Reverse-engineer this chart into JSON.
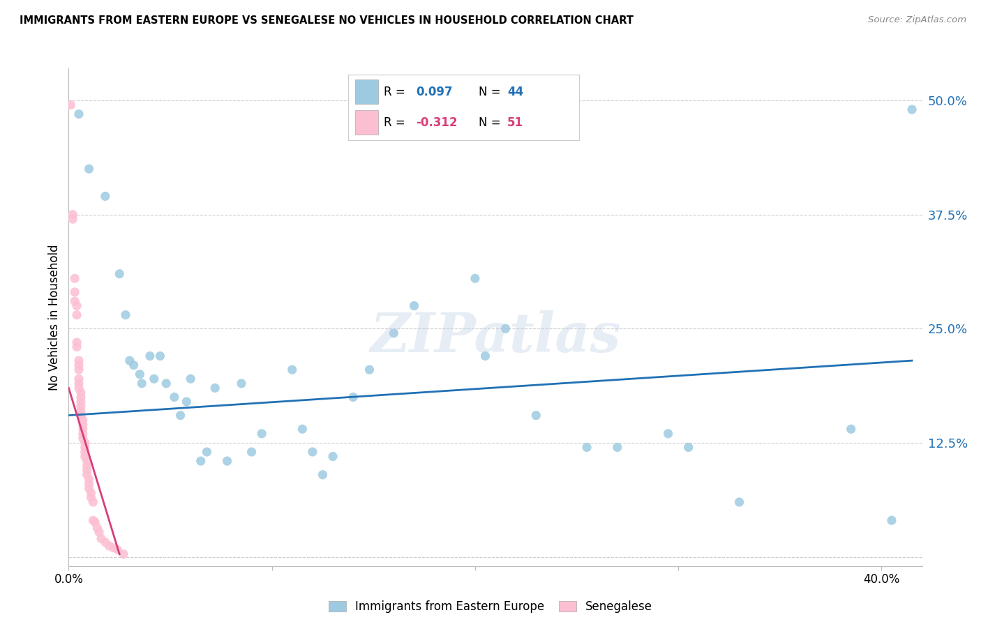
{
  "title": "IMMIGRANTS FROM EASTERN EUROPE VS SENEGALESE NO VEHICLES IN HOUSEHOLD CORRELATION CHART",
  "source": "Source: ZipAtlas.com",
  "ylabel": "No Vehicles in Household",
  "yticks": [
    0.0,
    0.125,
    0.25,
    0.375,
    0.5
  ],
  "ytick_labels": [
    "",
    "12.5%",
    "25.0%",
    "37.5%",
    "50.0%"
  ],
  "xticks": [
    0.0,
    0.1,
    0.2,
    0.3,
    0.4
  ],
  "xlim": [
    0.0,
    0.42
  ],
  "ylim": [
    -0.01,
    0.535
  ],
  "legend_label1": "Immigrants from Eastern Europe",
  "legend_label2": "Senegalese",
  "blue_color": "#9ecae1",
  "pink_color": "#fcbfd2",
  "blue_line_color": "#2171b5",
  "pink_line_color": "#d63e7a",
  "blue_scatter": [
    [
      0.005,
      0.485
    ],
    [
      0.01,
      0.425
    ],
    [
      0.018,
      0.395
    ],
    [
      0.025,
      0.31
    ],
    [
      0.028,
      0.265
    ],
    [
      0.03,
      0.215
    ],
    [
      0.032,
      0.21
    ],
    [
      0.035,
      0.2
    ],
    [
      0.036,
      0.19
    ],
    [
      0.04,
      0.22
    ],
    [
      0.042,
      0.195
    ],
    [
      0.045,
      0.22
    ],
    [
      0.048,
      0.19
    ],
    [
      0.052,
      0.175
    ],
    [
      0.055,
      0.155
    ],
    [
      0.058,
      0.17
    ],
    [
      0.06,
      0.195
    ],
    [
      0.065,
      0.105
    ],
    [
      0.068,
      0.115
    ],
    [
      0.072,
      0.185
    ],
    [
      0.078,
      0.105
    ],
    [
      0.085,
      0.19
    ],
    [
      0.09,
      0.115
    ],
    [
      0.095,
      0.135
    ],
    [
      0.11,
      0.205
    ],
    [
      0.115,
      0.14
    ],
    [
      0.12,
      0.115
    ],
    [
      0.125,
      0.09
    ],
    [
      0.13,
      0.11
    ],
    [
      0.14,
      0.175
    ],
    [
      0.148,
      0.205
    ],
    [
      0.16,
      0.245
    ],
    [
      0.17,
      0.275
    ],
    [
      0.2,
      0.305
    ],
    [
      0.205,
      0.22
    ],
    [
      0.215,
      0.25
    ],
    [
      0.23,
      0.155
    ],
    [
      0.255,
      0.12
    ],
    [
      0.27,
      0.12
    ],
    [
      0.295,
      0.135
    ],
    [
      0.305,
      0.12
    ],
    [
      0.33,
      0.06
    ],
    [
      0.385,
      0.14
    ],
    [
      0.405,
      0.04
    ],
    [
      0.415,
      0.49
    ]
  ],
  "pink_scatter": [
    [
      0.001,
      0.495
    ],
    [
      0.002,
      0.375
    ],
    [
      0.002,
      0.37
    ],
    [
      0.003,
      0.305
    ],
    [
      0.003,
      0.29
    ],
    [
      0.003,
      0.28
    ],
    [
      0.004,
      0.275
    ],
    [
      0.004,
      0.265
    ],
    [
      0.004,
      0.235
    ],
    [
      0.004,
      0.23
    ],
    [
      0.005,
      0.215
    ],
    [
      0.005,
      0.21
    ],
    [
      0.005,
      0.205
    ],
    [
      0.005,
      0.195
    ],
    [
      0.005,
      0.19
    ],
    [
      0.005,
      0.185
    ],
    [
      0.006,
      0.18
    ],
    [
      0.006,
      0.175
    ],
    [
      0.006,
      0.17
    ],
    [
      0.006,
      0.165
    ],
    [
      0.006,
      0.16
    ],
    [
      0.006,
      0.155
    ],
    [
      0.007,
      0.15
    ],
    [
      0.007,
      0.145
    ],
    [
      0.007,
      0.14
    ],
    [
      0.007,
      0.135
    ],
    [
      0.007,
      0.13
    ],
    [
      0.008,
      0.125
    ],
    [
      0.008,
      0.12
    ],
    [
      0.008,
      0.115
    ],
    [
      0.008,
      0.11
    ],
    [
      0.009,
      0.105
    ],
    [
      0.009,
      0.1
    ],
    [
      0.009,
      0.095
    ],
    [
      0.009,
      0.09
    ],
    [
      0.01,
      0.085
    ],
    [
      0.01,
      0.08
    ],
    [
      0.01,
      0.075
    ],
    [
      0.011,
      0.07
    ],
    [
      0.011,
      0.065
    ],
    [
      0.012,
      0.06
    ],
    [
      0.012,
      0.04
    ],
    [
      0.013,
      0.038
    ],
    [
      0.014,
      0.032
    ],
    [
      0.015,
      0.027
    ],
    [
      0.016,
      0.02
    ],
    [
      0.018,
      0.016
    ],
    [
      0.02,
      0.012
    ],
    [
      0.022,
      0.01
    ],
    [
      0.024,
      0.008
    ],
    [
      0.027,
      0.003
    ]
  ],
  "blue_trend_x": [
    0.0,
    0.415
  ],
  "blue_trend_y": [
    0.155,
    0.215
  ],
  "pink_trend_x": [
    0.0,
    0.025
  ],
  "pink_trend_y": [
    0.185,
    0.003
  ],
  "watermark": "ZIPatlas",
  "marker_size": 90
}
